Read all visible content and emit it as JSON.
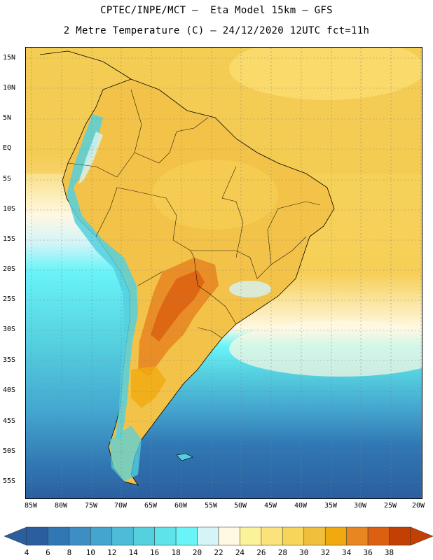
{
  "title_line1": "CPTEC/INPE/MCT –  Eta Model 15km – GFS",
  "title_line2": "2 Metre Temperature (C) – 24/12/2020 12UTC fct=11h",
  "lat_labels": [
    "15N",
    "10N",
    "5N",
    "EQ",
    "5S",
    "10S",
    "15S",
    "20S",
    "25S",
    "30S",
    "35S",
    "40S",
    "45S",
    "50S",
    "55S"
  ],
  "lon_labels": [
    "85W",
    "80W",
    "75W",
    "70W",
    "65W",
    "60W",
    "55W",
    "50W",
    "45W",
    "40W",
    "35W",
    "30W",
    "25W",
    "20W"
  ],
  "colorbar": {
    "labels": [
      "4",
      "6",
      "8",
      "10",
      "12",
      "14",
      "16",
      "18",
      "20",
      "22",
      "24",
      "26",
      "28",
      "30",
      "32",
      "34",
      "36",
      "38"
    ],
    "colors": [
      "#2b5e9e",
      "#3077b3",
      "#3d8fc3",
      "#44a5cf",
      "#4cbcd8",
      "#55d0df",
      "#5ee3ea",
      "#6af4f8",
      "#d4f4f8",
      "#fff8e2",
      "#fcf29a",
      "#fce27a",
      "#f7d45a",
      "#f0bf3c",
      "#f0aa10",
      "#e88722",
      "#dc6012",
      "#c24004"
    ]
  },
  "map": {
    "region": "South America",
    "lat_range": [
      "15N",
      "55S"
    ],
    "lon_range": [
      "85W",
      "20W"
    ],
    "variable": "2 Metre Temperature (C)"
  }
}
